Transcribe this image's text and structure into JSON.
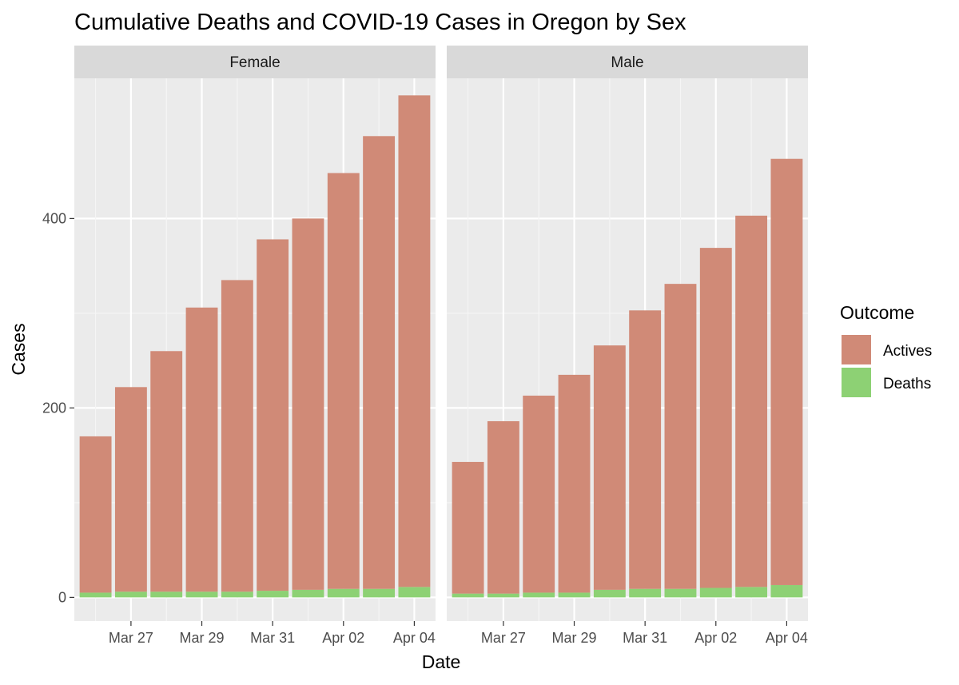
{
  "chart_data": {
    "type": "bar",
    "stacked": true,
    "title": "Cumulative Deaths and COVID-19 Cases in Oregon by Sex",
    "xlabel": "Date",
    "ylabel": "Cases",
    "ylim": [
      -25,
      548
    ],
    "yticks": [
      0,
      200,
      400
    ],
    "ytick_labels": [
      "0",
      "200",
      "400"
    ],
    "dates": [
      "Mar 26",
      "Mar 27",
      "Mar 28",
      "Mar 29",
      "Mar 30",
      "Mar 31",
      "Apr 01",
      "Apr 02",
      "Apr 03",
      "Apr 04"
    ],
    "xtick_labels": [
      "Mar 27",
      "Mar 29",
      "Mar 31",
      "Apr 02",
      "Apr 04"
    ],
    "xtick_index": [
      1,
      3,
      5,
      7,
      9
    ],
    "legend": {
      "title": "Outcome",
      "position": "right",
      "entries": [
        {
          "name": "Actives",
          "color": "#D08A77"
        },
        {
          "name": "Deaths",
          "color": "#8DD174"
        }
      ]
    },
    "panels": [
      {
        "label": "Female",
        "series": [
          {
            "name": "Deaths",
            "values": [
              5,
              6,
              6,
              6,
              6,
              7,
              8,
              9,
              9,
              11
            ]
          },
          {
            "name": "Actives",
            "values": [
              165,
              216,
              254,
              300,
              329,
              371,
              392,
              439,
              478,
              519
            ]
          }
        ]
      },
      {
        "label": "Male",
        "series": [
          {
            "name": "Deaths",
            "values": [
              4,
              4,
              5,
              5,
              8,
              9,
              9,
              10,
              11,
              13
            ]
          },
          {
            "name": "Actives",
            "values": [
              139,
              182,
              208,
              230,
              258,
              294,
              322,
              359,
              392,
              450
            ]
          }
        ]
      }
    ]
  }
}
